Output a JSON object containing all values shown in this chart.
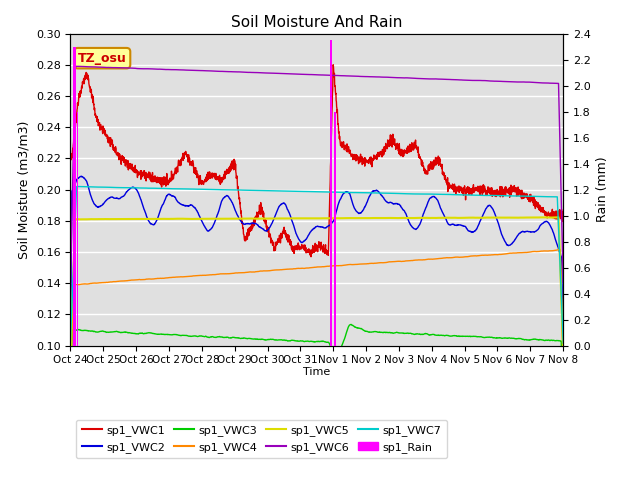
{
  "title": "Soil Moisture And Rain",
  "xlabel": "Time",
  "ylabel_left": "Soil Moisture (m3/m3)",
  "ylabel_right": "Rain (mm)",
  "annotation": "TZ_osu",
  "ylim_left": [
    0.1,
    0.3
  ],
  "ylim_right": [
    0.0,
    2.4
  ],
  "x_tick_labels": [
    "Oct 24",
    "Oct 25",
    "Oct 26",
    "Oct 27",
    "Oct 28",
    "Oct 29",
    "Oct 30",
    "Oct 31",
    "Nov 1",
    "Nov 2",
    "Nov 3",
    "Nov 4",
    "Nov 5",
    "Nov 6",
    "Nov 7",
    "Nov 8"
  ],
  "colors": {
    "VWC1": "#dd0000",
    "VWC2": "#0000dd",
    "VWC3": "#00cc00",
    "VWC4": "#ff8800",
    "VWC5": "#dddd00",
    "VWC6": "#9900bb",
    "VWC7": "#00cccc",
    "Rain": "#ff00ff"
  },
  "background_color": "#e0e0e0",
  "fig_background": "#ffffff",
  "legend_labels": [
    "sp1_VWC1",
    "sp1_VWC2",
    "sp1_VWC3",
    "sp1_VWC4",
    "sp1_VWC5",
    "sp1_VWC6",
    "sp1_VWC7",
    "sp1_Rain"
  ]
}
